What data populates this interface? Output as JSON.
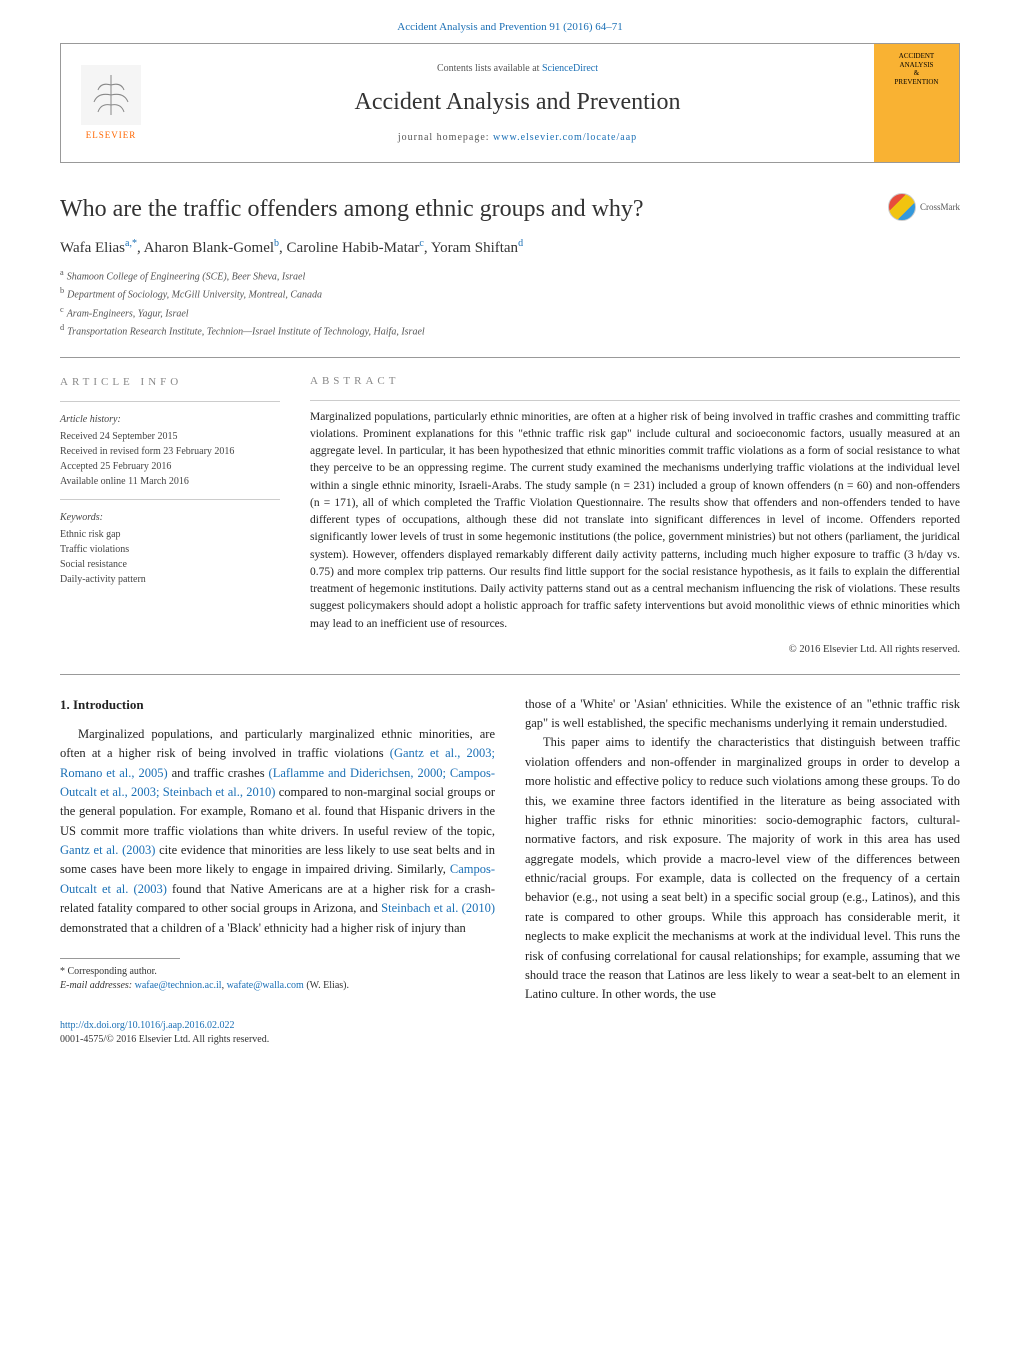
{
  "journal_header_link": "Accident Analysis and Prevention 91 (2016) 64–71",
  "header": {
    "contents_prefix": "Contents lists available at ",
    "contents_link": "ScienceDirect",
    "journal_title": "Accident Analysis and Prevention",
    "homepage_prefix": "journal homepage: ",
    "homepage_link": "www.elsevier.com/locate/aap",
    "elsevier_label": "ELSEVIER",
    "cover_line1": "ACCIDENT",
    "cover_line2": "ANALYSIS",
    "cover_line3": "&",
    "cover_line4": "PREVENTION"
  },
  "article": {
    "title": "Who are the traffic offenders among ethnic groups and why?",
    "crossmark_label": "CrossMark"
  },
  "authors_html": "Wafa Elias",
  "authors": [
    {
      "name": "Wafa Elias",
      "sup": "a,*"
    },
    {
      "name": "Aharon Blank-Gomel",
      "sup": "b"
    },
    {
      "name": "Caroline Habib-Matar",
      "sup": "c"
    },
    {
      "name": "Yoram Shiftan",
      "sup": "d"
    }
  ],
  "authors_separator": ", ",
  "affiliations": [
    {
      "sup": "a",
      "text": "Shamoon College of Engineering (SCE), Beer Sheva, Israel"
    },
    {
      "sup": "b",
      "text": "Department of Sociology, McGill University, Montreal, Canada"
    },
    {
      "sup": "c",
      "text": "Aram-Engineers, Yagur, Israel"
    },
    {
      "sup": "d",
      "text": "Transportation Research Institute, Technion—Israel Institute of Technology, Haifa, Israel"
    }
  ],
  "info": {
    "heading": "ARTICLE INFO",
    "history_heading": "Article history:",
    "history": [
      "Received 24 September 2015",
      "Received in revised form 23 February 2016",
      "Accepted 25 February 2016",
      "Available online 11 March 2016"
    ],
    "keywords_heading": "Keywords:",
    "keywords": [
      "Ethnic risk gap",
      "Traffic violations",
      "Social resistance",
      "Daily-activity pattern"
    ]
  },
  "abstract": {
    "heading": "ABSTRACT",
    "text": "Marginalized populations, particularly ethnic minorities, are often at a higher risk of being involved in traffic crashes and committing traffic violations. Prominent explanations for this \"ethnic traffic risk gap\" include cultural and socioeconomic factors, usually measured at an aggregate level. In particular, it has been hypothesized that ethnic minorities commit traffic violations as a form of social resistance to what they perceive to be an oppressing regime. The current study examined the mechanisms underlying traffic violations at the individual level within a single ethnic minority, Israeli-Arabs. The study sample (n = 231) included a group of known offenders (n = 60) and non-offenders (n = 171), all of which completed the Traffic Violation Questionnaire. The results show that offenders and non-offenders tended to have different types of occupations, although these did not translate into significant differences in level of income. Offenders reported significantly lower levels of trust in some hegemonic institutions (the police, government ministries) but not others (parliament, the juridical system). However, offenders displayed remarkably different daily activity patterns, including much higher exposure to traffic (3 h/day vs. 0.75) and more complex trip patterns. Our results find little support for the social resistance hypothesis, as it fails to explain the differential treatment of hegemonic institutions. Daily activity patterns stand out as a central mechanism influencing the risk of violations. These results suggest policymakers should adopt a holistic approach for traffic safety interventions but avoid monolithic views of ethnic minorities which may lead to an inefficient use of resources.",
    "copyright": "© 2016 Elsevier Ltd. All rights reserved."
  },
  "body": {
    "section_heading": "1. Introduction",
    "col1_p1_a": "Marginalized populations, and particularly marginalized ethnic minorities, are often at a higher risk of being involved in traffic violations ",
    "col1_p1_cite1": "(Gantz et al., 2003; Romano et al., 2005)",
    "col1_p1_b": " and traffic crashes ",
    "col1_p1_cite2": "(Laflamme and Diderichsen, 2000; Campos-Outcalt et al., 2003; Steinbach et al., 2010)",
    "col1_p1_c": " compared to non-marginal social groups or the general population. For example, Romano et al. found that Hispanic drivers in the US commit more traffic violations than white drivers. In useful review of the topic, ",
    "col1_p1_cite3": "Gantz et al. (2003)",
    "col1_p1_d": " cite evidence that minorities are less likely to use seat belts and in some cases have been more likely to engage in impaired driving. Similarly, ",
    "col1_p1_cite4": "Campos-Outcalt et al. (2003)",
    "col1_p1_e": " found that Native Americans are at a higher risk for a crash-related fatality compared to other social groups in Arizona, and ",
    "col1_p1_cite5": "Steinbach et al. (2010)",
    "col1_p1_f": " demonstrated that a children of a 'Black' ethnicity had a higher risk of injury than",
    "col2_p1": "those of a 'White' or 'Asian' ethnicities. While the existence of an \"ethnic traffic risk gap\" is well established, the specific mechanisms underlying it remain understudied.",
    "col2_p2": "This paper aims to identify the characteristics that distinguish between traffic violation offenders and non-offender in marginalized groups in order to develop a more holistic and effective policy to reduce such violations among these groups. To do this, we examine three factors identified in the literature as being associated with higher traffic risks for ethnic minorities: socio-demographic factors, cultural-normative factors, and risk exposure. The majority of work in this area has used aggregate models, which provide a macro-level view of the differences between ethnic/racial groups. For example, data is collected on the frequency of a certain behavior (e.g., not using a seat belt) in a specific social group (e.g., Latinos), and this rate is compared to other groups. While this approach has considerable merit, it neglects to make explicit the mechanisms at work at the individual level. This runs the risk of confusing correlational for causal relationships; for example, assuming that we should trace the reason that Latinos are less likely to wear a seat-belt to an element in Latino culture. In other words, the use"
  },
  "footnotes": {
    "corresponding": "* Corresponding author.",
    "email_prefix": "E-mail addresses: ",
    "email1": "wafae@technion.ac.il",
    "email_sep": ", ",
    "email2": "wafate@walla.com",
    "email_suffix": " (W. Elias)."
  },
  "doi": {
    "link": "http://dx.doi.org/10.1016/j.aap.2016.02.022",
    "issn_line": "0001-4575/© 2016 Elsevier Ltd. All rights reserved."
  },
  "colors": {
    "link": "#1a6fb5",
    "elsevier_orange": "#ff6600",
    "cover_bg": "#f9b233"
  }
}
